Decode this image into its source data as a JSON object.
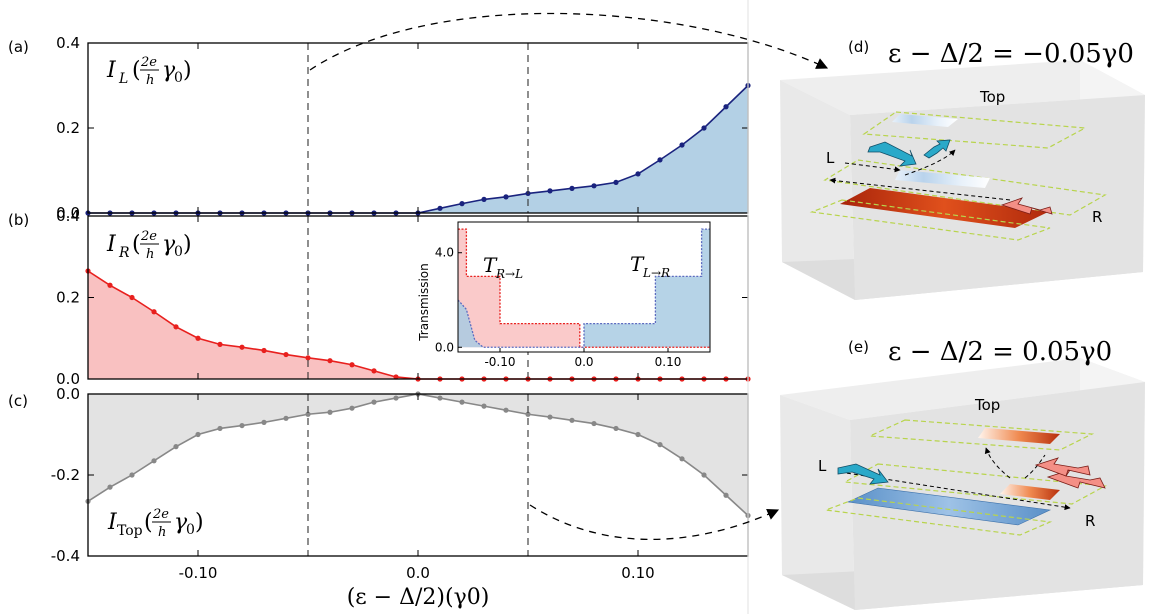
{
  "chart_data": [
    {
      "panel": "(a)",
      "type": "area",
      "color": "#1a237e",
      "fill": "#b3d0e5",
      "ylim": [
        0.0,
        0.4
      ],
      "xlim": [
        -0.15,
        0.15
      ],
      "yticks": [
        "0.0",
        "0.2",
        "0.4"
      ],
      "x": [
        -0.15,
        -0.14,
        -0.13,
        -0.12,
        -0.11,
        -0.1,
        -0.09,
        -0.08,
        -0.07,
        -0.06,
        -0.05,
        -0.04,
        -0.03,
        -0.02,
        -0.01,
        0.0,
        0.01,
        0.02,
        0.03,
        0.04,
        0.05,
        0.06,
        0.07,
        0.08,
        0.09,
        0.1,
        0.11,
        0.12,
        0.13,
        0.14,
        0.15
      ],
      "values": [
        0,
        0,
        0,
        0,
        0,
        0,
        0,
        0,
        0,
        0,
        0,
        0,
        0,
        0,
        0,
        0,
        0.011,
        0.022,
        0.032,
        0.038,
        0.046,
        0.052,
        0.058,
        0.064,
        0.072,
        0.092,
        0.125,
        0.16,
        0.2,
        0.25,
        0.3
      ],
      "ylabel_parts": [
        "I",
        "L",
        "(",
        "2e",
        "h",
        "γ",
        "0",
        ")"
      ]
    },
    {
      "panel": "(b)",
      "type": "area",
      "color": "#e8201e",
      "fill": "#f9c1c1",
      "ylim": [
        0.0,
        0.4
      ],
      "xlim": [
        -0.15,
        0.15
      ],
      "yticks": [
        "0.0",
        "0.2",
        "0.4"
      ],
      "x": [
        -0.15,
        -0.14,
        -0.13,
        -0.12,
        -0.11,
        -0.1,
        -0.09,
        -0.08,
        -0.07,
        -0.06,
        -0.05,
        -0.04,
        -0.03,
        -0.02,
        -0.01,
        0.0,
        0.01,
        0.02,
        0.03,
        0.04,
        0.05,
        0.06,
        0.07,
        0.08,
        0.09,
        0.1,
        0.11,
        0.12,
        0.13,
        0.14,
        0.15
      ],
      "values": [
        0.265,
        0.23,
        0.2,
        0.165,
        0.128,
        0.1,
        0.085,
        0.078,
        0.07,
        0.06,
        0.052,
        0.045,
        0.035,
        0.02,
        0.005,
        0,
        0,
        0,
        0,
        0,
        0,
        0,
        0,
        0,
        0,
        0,
        0,
        0,
        0,
        0,
        0
      ],
      "ylabel_parts": [
        "I",
        "R",
        "(",
        "2e",
        "h",
        "γ",
        "0",
        ")"
      ],
      "inset": {
        "ylabel": "Transmission",
        "xlim": [
          -0.15,
          0.15
        ],
        "ylim": [
          -0.2,
          5.3
        ],
        "xticks": [
          "-0.10",
          "0.0",
          "0.10"
        ],
        "yticks": [
          "0.0",
          "4.0"
        ],
        "series": [
          {
            "name": "T_{R→L}",
            "label_main": "T",
            "label_sub": "R→L",
            "color": "#e8201e",
            "fill": "#f9c1c1",
            "x": [
              -0.15,
              -0.14,
              -0.14,
              -0.12,
              -0.12,
              -0.1,
              -0.1,
              -0.005,
              -0.005,
              0.15
            ],
            "values": [
              5,
              5,
              3,
              3,
              3,
              3,
              1,
              1,
              0,
              0
            ]
          },
          {
            "name": "T_{L→R}",
            "label_main": "T",
            "label_sub": "L→R",
            "color": "#5c6bc0",
            "fill": "#a9cbe3",
            "x": [
              -0.15,
              -0.14,
              -0.13,
              -0.12,
              -0.11,
              0.0,
              0.0,
              0.085,
              0.085,
              0.14,
              0.14,
              0.15
            ],
            "values": [
              2,
              1.6,
              0.3,
              0,
              0,
              0,
              1,
              1,
              3,
              3,
              5,
              5
            ]
          }
        ]
      }
    },
    {
      "panel": "(c)",
      "type": "area",
      "color": "#888888",
      "fill": "#e3e3e3",
      "ylim": [
        -0.4,
        0.0
      ],
      "xlim": [
        -0.15,
        0.15
      ],
      "yticks": [
        "0.0",
        "-0.2",
        "-0.4"
      ],
      "xticks": [
        "-0.10",
        "0.0",
        "0.10"
      ],
      "x": [
        -0.15,
        -0.14,
        -0.13,
        -0.12,
        -0.11,
        -0.1,
        -0.09,
        -0.08,
        -0.07,
        -0.06,
        -0.05,
        -0.04,
        -0.03,
        -0.02,
        -0.01,
        0.0,
        0.01,
        0.02,
        0.03,
        0.04,
        0.05,
        0.06,
        0.07,
        0.08,
        0.09,
        0.1,
        0.11,
        0.12,
        0.13,
        0.14,
        0.15
      ],
      "values": [
        -0.265,
        -0.23,
        -0.2,
        -0.165,
        -0.13,
        -0.1,
        -0.085,
        -0.078,
        -0.07,
        -0.06,
        -0.05,
        -0.045,
        -0.035,
        -0.02,
        -0.01,
        0,
        -0.01,
        -0.02,
        -0.03,
        -0.04,
        -0.05,
        -0.057,
        -0.065,
        -0.073,
        -0.085,
        -0.1,
        -0.125,
        -0.16,
        -0.2,
        -0.25,
        -0.3
      ],
      "ylabel_parts": [
        "I",
        "Top",
        "(",
        "2e",
        "h",
        "γ",
        "0",
        ")"
      ],
      "xlabel": "(ε − Δ/2)(γ0)"
    }
  ],
  "vlines": [
    -0.05,
    0.05
  ],
  "panels3d": [
    {
      "label": "(d)",
      "title": "ε − Δ/2 = −0.05γ0",
      "lead_top": "Top",
      "lead_l": "L",
      "lead_r": "R"
    },
    {
      "label": "(e)",
      "title": "ε − Δ/2 = 0.05γ0",
      "lead_top": "Top",
      "lead_l": "L",
      "lead_r": "R"
    }
  ],
  "subscript_zero": "0"
}
